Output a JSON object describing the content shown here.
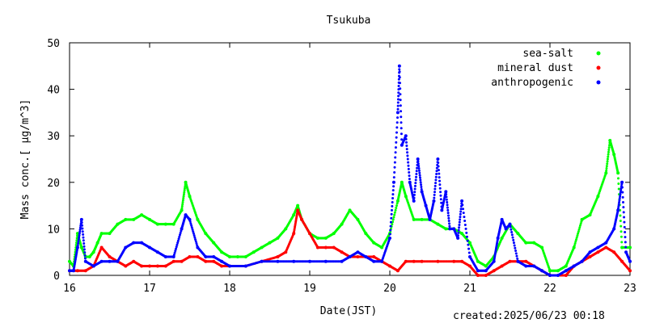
{
  "chart_data": {
    "type": "scatter",
    "title": "Tsukuba",
    "xlabel": "Date(JST)",
    "ylabel": "Mass conc.[ μg/m^3]",
    "xlim": [
      16,
      23
    ],
    "ylim": [
      0,
      50
    ],
    "xticks": [
      "16",
      "17",
      "18",
      "19",
      "20",
      "21",
      "22",
      "23"
    ],
    "yticks": [
      "0",
      "10",
      "20",
      "30",
      "40",
      "50"
    ],
    "grid": false,
    "legend_position": "top-right",
    "series": [
      {
        "name": "sea-salt",
        "color": "#00ff00",
        "x": [
          16.0,
          16.05,
          16.1,
          16.15,
          16.2,
          16.25,
          16.3,
          16.35,
          16.4,
          16.5,
          16.6,
          16.7,
          16.8,
          16.9,
          17.0,
          17.1,
          17.2,
          17.3,
          17.4,
          17.45,
          17.5,
          17.6,
          17.7,
          17.8,
          17.9,
          18.0,
          18.1,
          18.2,
          18.3,
          18.4,
          18.5,
          18.6,
          18.7,
          18.8,
          18.85,
          18.9,
          19.0,
          19.1,
          19.2,
          19.3,
          19.4,
          19.5,
          19.6,
          19.7,
          19.8,
          19.9,
          20.0,
          20.1,
          20.15,
          20.2,
          20.3,
          20.4,
          20.5,
          20.6,
          20.7,
          20.8,
          20.9,
          21.0,
          21.1,
          21.2,
          21.3,
          21.4,
          21.5,
          21.6,
          21.7,
          21.8,
          21.9,
          22.0,
          22.1,
          22.2,
          22.3,
          22.4,
          22.5,
          22.6,
          22.7,
          22.75,
          22.8,
          22.85,
          22.9,
          23.0
        ],
        "y": [
          3,
          2,
          9,
          6,
          4,
          4,
          5,
          7,
          9,
          9,
          11,
          12,
          12,
          13,
          12,
          11,
          11,
          11,
          14,
          20,
          17,
          12,
          9,
          7,
          5,
          4,
          4,
          4,
          5,
          6,
          7,
          8,
          10,
          13,
          15,
          12,
          9,
          8,
          8,
          9,
          11,
          14,
          12,
          9,
          7,
          6,
          9,
          16,
          20,
          17,
          12,
          12,
          12,
          11,
          10,
          10,
          9,
          7,
          3,
          2,
          4,
          8,
          11,
          9,
          7,
          7,
          6,
          1,
          1,
          2,
          6,
          12,
          13,
          17,
          22,
          29,
          26,
          22,
          6,
          6
        ]
      },
      {
        "name": "mineral dust",
        "color": "#ff0000",
        "x": [
          16.0,
          16.1,
          16.2,
          16.3,
          16.4,
          16.5,
          16.6,
          16.7,
          16.8,
          16.9,
          17.0,
          17.1,
          17.2,
          17.3,
          17.4,
          17.5,
          17.6,
          17.7,
          17.8,
          17.9,
          18.0,
          18.2,
          18.4,
          18.6,
          18.7,
          18.8,
          18.85,
          18.9,
          19.0,
          19.1,
          19.2,
          19.3,
          19.4,
          19.5,
          19.6,
          19.7,
          19.8,
          19.9,
          20.0,
          20.1,
          20.2,
          20.3,
          20.4,
          20.6,
          20.8,
          20.9,
          21.0,
          21.1,
          21.2,
          21.3,
          21.4,
          21.5,
          21.6,
          21.7,
          21.8,
          21.9,
          22.0,
          22.2,
          22.3,
          22.4,
          22.5,
          22.6,
          22.7,
          22.8,
          22.9,
          23.0
        ],
        "y": [
          1,
          1,
          1,
          2,
          6,
          4,
          3,
          2,
          3,
          2,
          2,
          2,
          2,
          3,
          3,
          4,
          4,
          3,
          3,
          2,
          2,
          2,
          3,
          4,
          5,
          9,
          14,
          12,
          9,
          6,
          6,
          6,
          5,
          4,
          4,
          4,
          4,
          3,
          2,
          1,
          3,
          3,
          3,
          3,
          3,
          3,
          2,
          0,
          0,
          1,
          2,
          3,
          3,
          3,
          2,
          1,
          0,
          0,
          2,
          3,
          4,
          5,
          6,
          5,
          3,
          1
        ]
      },
      {
        "name": "anthropogenic",
        "color": "#0000ff",
        "x": [
          16.0,
          16.05,
          16.1,
          16.15,
          16.2,
          16.3,
          16.4,
          16.5,
          16.6,
          16.7,
          16.8,
          16.9,
          17.0,
          17.1,
          17.2,
          17.3,
          17.4,
          17.45,
          17.5,
          17.6,
          17.7,
          17.8,
          17.9,
          18.0,
          18.2,
          18.4,
          18.6,
          18.8,
          19.0,
          19.2,
          19.4,
          19.5,
          19.6,
          19.7,
          19.8,
          19.9,
          20.0,
          20.05,
          20.1,
          20.12,
          20.15,
          20.2,
          20.25,
          20.3,
          20.35,
          20.4,
          20.45,
          20.5,
          20.55,
          20.6,
          20.65,
          20.7,
          20.75,
          20.8,
          20.85,
          20.9,
          21.0,
          21.1,
          21.2,
          21.3,
          21.35,
          21.4,
          21.45,
          21.5,
          21.6,
          21.7,
          21.8,
          21.9,
          22.0,
          22.1,
          22.2,
          22.3,
          22.4,
          22.5,
          22.6,
          22.7,
          22.8,
          22.85,
          22.9,
          22.95,
          23.0
        ],
        "y": [
          1,
          1,
          6,
          12,
          3,
          2,
          3,
          3,
          3,
          6,
          7,
          7,
          6,
          5,
          4,
          4,
          10,
          13,
          12,
          6,
          4,
          4,
          3,
          2,
          2,
          3,
          3,
          3,
          3,
          3,
          3,
          4,
          5,
          4,
          3,
          3,
          8,
          20,
          35,
          45,
          28,
          30,
          20,
          16,
          25,
          18,
          15,
          12,
          16,
          25,
          14,
          18,
          10,
          10,
          8,
          16,
          4,
          1,
          1,
          3,
          8,
          12,
          10,
          11,
          3,
          2,
          2,
          1,
          0,
          0,
          1,
          2,
          3,
          5,
          6,
          7,
          10,
          14,
          20,
          5,
          3
        ]
      }
    ]
  },
  "footer": {
    "created": "created:2025/06/23 00:18"
  }
}
